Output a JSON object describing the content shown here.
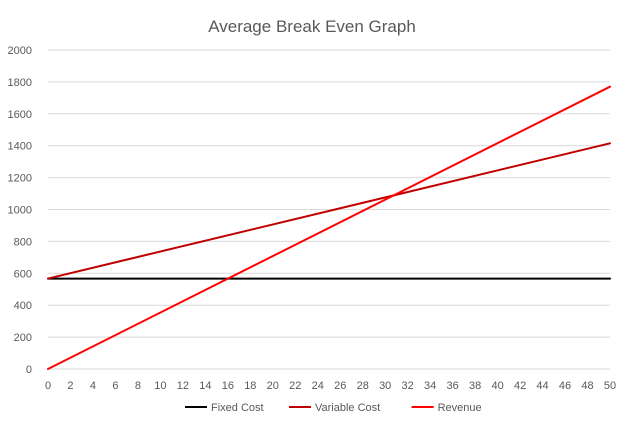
{
  "chart_data": {
    "type": "line",
    "title": "Average Break Even Graph",
    "xlabel": "",
    "ylabel": "",
    "xlim": [
      0,
      50
    ],
    "ylim": [
      0,
      2000
    ],
    "x_ticks": [
      0,
      2,
      4,
      6,
      8,
      10,
      12,
      14,
      16,
      18,
      20,
      22,
      24,
      26,
      28,
      30,
      32,
      34,
      36,
      38,
      40,
      42,
      44,
      46,
      48,
      50
    ],
    "y_ticks": [
      0,
      200,
      400,
      600,
      800,
      1000,
      1200,
      1400,
      1600,
      1800,
      2000
    ],
    "grid": {
      "horizontal": true,
      "vertical": false
    },
    "legend_position": "bottom",
    "series": [
      {
        "name": "Fixed Cost",
        "color": "#000000",
        "x": [
          0,
          50
        ],
        "y": [
          567,
          567
        ]
      },
      {
        "name": "Variable Cost",
        "color": "#c00000",
        "x": [
          0,
          50
        ],
        "y": [
          567,
          1415
        ]
      },
      {
        "name": "Revenue",
        "color": "#ff0000",
        "x": [
          0,
          50
        ],
        "y": [
          0,
          1770
        ]
      }
    ]
  }
}
